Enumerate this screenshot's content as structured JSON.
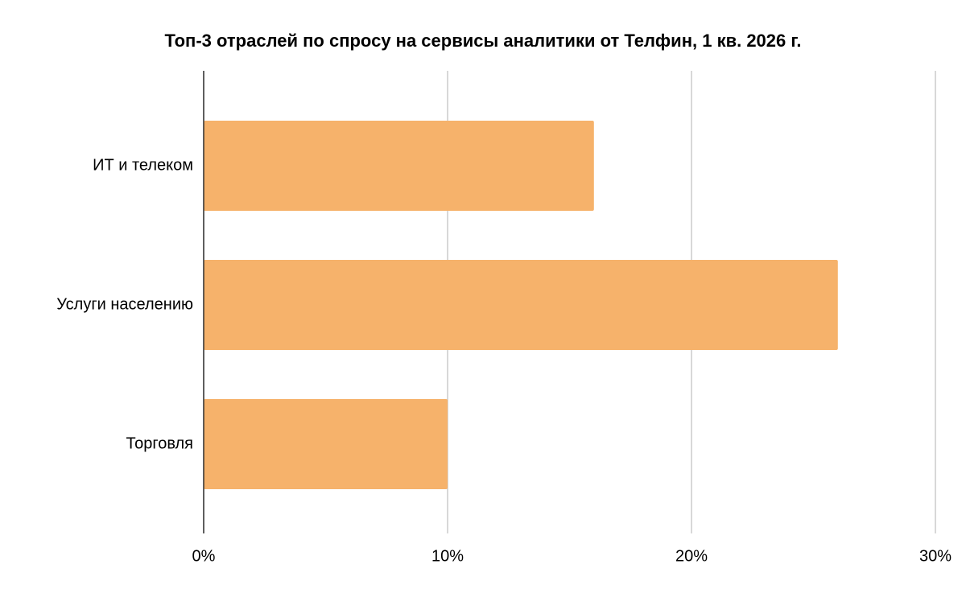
{
  "chart_data": {
    "type": "bar",
    "orientation": "horizontal",
    "title": "Топ-3 отраслей по спросу на сервисы аналитики от Телфин, 1 кв. 2026 г.",
    "categories": [
      "ИТ и телеком",
      "Услуги населению",
      "Торговля"
    ],
    "values": [
      16,
      26,
      10
    ],
    "color": "#f6b26b",
    "xlim": [
      0,
      30
    ],
    "xticks": [
      {
        "value": 0,
        "label": "0%"
      },
      {
        "value": 10,
        "label": "10%"
      },
      {
        "value": 20,
        "label": "20%"
      },
      {
        "value": 30,
        "label": "30%"
      }
    ],
    "grid": true
  }
}
